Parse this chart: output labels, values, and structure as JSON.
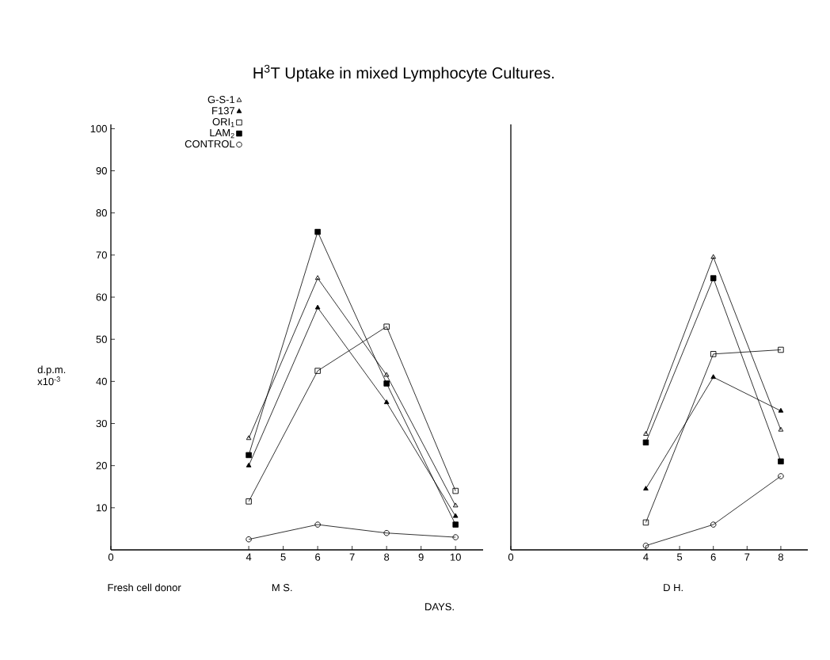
{
  "chart_data": [
    {
      "type": "line",
      "title": "H$^{3}$T Uptake in mixed Lymphocyte Cultures.",
      "ylabel": "d.p.m. x10$^{-3}$",
      "xlabel": "M S.",
      "annotations": [
        "Fresh cell donor",
        "DAYS."
      ],
      "x": [
        4,
        6,
        8,
        10
      ],
      "xlim": [
        0,
        10.8
      ],
      "xticks": [
        0,
        4,
        5,
        6,
        7,
        8,
        9,
        10
      ],
      "ylim": [
        0,
        101
      ],
      "yticks": [
        10,
        20,
        30,
        40,
        50,
        60,
        70,
        80,
        90,
        100
      ],
      "legend": "top left",
      "series": [
        {
          "name": "G-S-1",
          "color": "#000000",
          "marker": "triangle",
          "values": [
            26.5,
            64.5,
            41.5,
            10.5
          ]
        },
        {
          "name": "F137",
          "color": "#000000",
          "marker": "triangle*",
          "values": [
            20,
            57.5,
            35,
            8
          ]
        },
        {
          "name": "ORI$_{1}$",
          "color": "#000000",
          "marker": "square",
          "values": [
            11.5,
            42.5,
            53,
            14
          ]
        },
        {
          "name": "LAM$_{2}$",
          "color": "#000000",
          "marker": "square*",
          "values": [
            22.5,
            75.5,
            39.5,
            6
          ]
        },
        {
          "name": "CONTROL",
          "color": "#000000",
          "marker": "circle",
          "values": [
            2.5,
            6,
            4,
            3
          ]
        }
      ]
    },
    {
      "type": "line",
      "xlabel": "D H.",
      "x": [
        4,
        6,
        8
      ],
      "xlim": [
        0,
        8.8
      ],
      "xticks": [
        0,
        4,
        5,
        6,
        7,
        8
      ],
      "ylim": [
        0,
        101
      ],
      "tick_labels": "x",
      "series": [
        {
          "color": "#000000",
          "marker": "triangle",
          "values": [
            27.5,
            69.5,
            28.5
          ]
        },
        {
          "color": "#000000",
          "marker": "triangle*",
          "values": [
            14.5,
            41,
            33
          ]
        },
        {
          "color": "#000000",
          "marker": "square",
          "values": [
            6.5,
            46.5,
            47.5
          ]
        },
        {
          "color": "#000000",
          "marker": "square*",
          "values": [
            25.5,
            64.5,
            21
          ]
        },
        {
          "color": "#000000",
          "marker": "circle",
          "values": [
            1,
            6,
            17.5
          ]
        }
      ]
    }
  ]
}
